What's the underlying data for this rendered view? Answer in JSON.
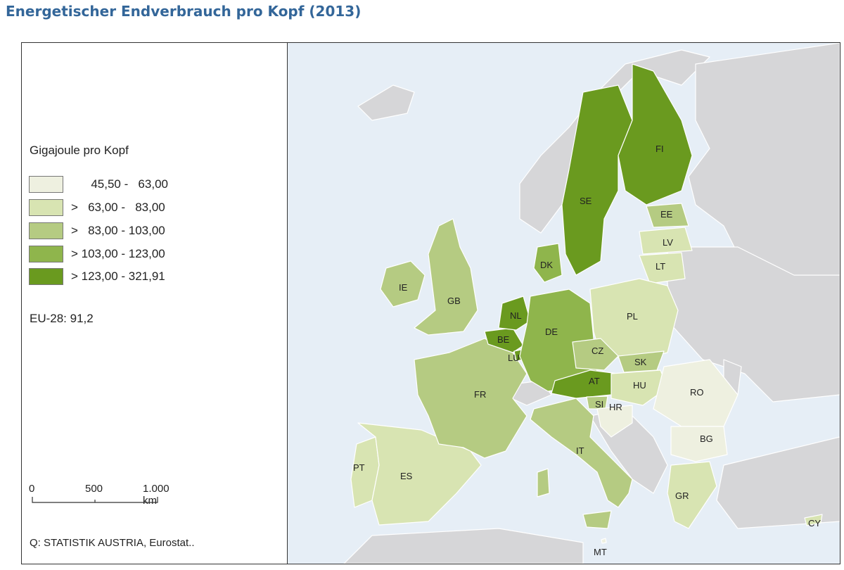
{
  "title": "Energetischer Endverbrauch pro Kopf (2013)",
  "legend": {
    "title": "Gigajoule pro Kopf",
    "classes": [
      {
        "label": "      45,50 -   63,00",
        "color": "#eef0e0"
      },
      {
        "label": ">   63,00 -   83,00",
        "color": "#d8e4b2"
      },
      {
        "label": ">   83,00 - 103,00",
        "color": "#b5cb82"
      },
      {
        "label": "> 103,00 - 123,00",
        "color": "#8fb54c"
      },
      {
        "label": "> 123,00 - 321,91",
        "color": "#6a9a1f"
      }
    ]
  },
  "eu_average": "EU-28: 91,2",
  "scale": {
    "labels": [
      "0",
      "500",
      "1.000 km"
    ]
  },
  "source": "Q: STATISTIK AUSTRIA, Eurostat..",
  "colors": {
    "sea": "#e6eef6",
    "non_eu_land": "#d6d6d8",
    "border": "#ffffff"
  },
  "countries": [
    {
      "code": "IE",
      "class": 2
    },
    {
      "code": "GB",
      "class": 2
    },
    {
      "code": "PT",
      "class": 1
    },
    {
      "code": "ES",
      "class": 1
    },
    {
      "code": "FR",
      "class": 2
    },
    {
      "code": "BE",
      "class": 4
    },
    {
      "code": "NL",
      "class": 4
    },
    {
      "code": "LU",
      "class": 4
    },
    {
      "code": "DE",
      "class": 3
    },
    {
      "code": "DK",
      "class": 3
    },
    {
      "code": "SE",
      "class": 4
    },
    {
      "code": "FI",
      "class": 4
    },
    {
      "code": "EE",
      "class": 2
    },
    {
      "code": "LV",
      "class": 1
    },
    {
      "code": "LT",
      "class": 1
    },
    {
      "code": "PL",
      "class": 1
    },
    {
      "code": "CZ",
      "class": 2
    },
    {
      "code": "SK",
      "class": 2
    },
    {
      "code": "AT",
      "class": 4
    },
    {
      "code": "HU",
      "class": 1
    },
    {
      "code": "SI",
      "class": 2
    },
    {
      "code": "HR",
      "class": 0
    },
    {
      "code": "RO",
      "class": 0
    },
    {
      "code": "BG",
      "class": 0
    },
    {
      "code": "IT",
      "class": 2
    },
    {
      "code": "GR",
      "class": 1
    },
    {
      "code": "CY",
      "class": 1
    },
    {
      "code": "MT",
      "class": 0
    }
  ]
}
